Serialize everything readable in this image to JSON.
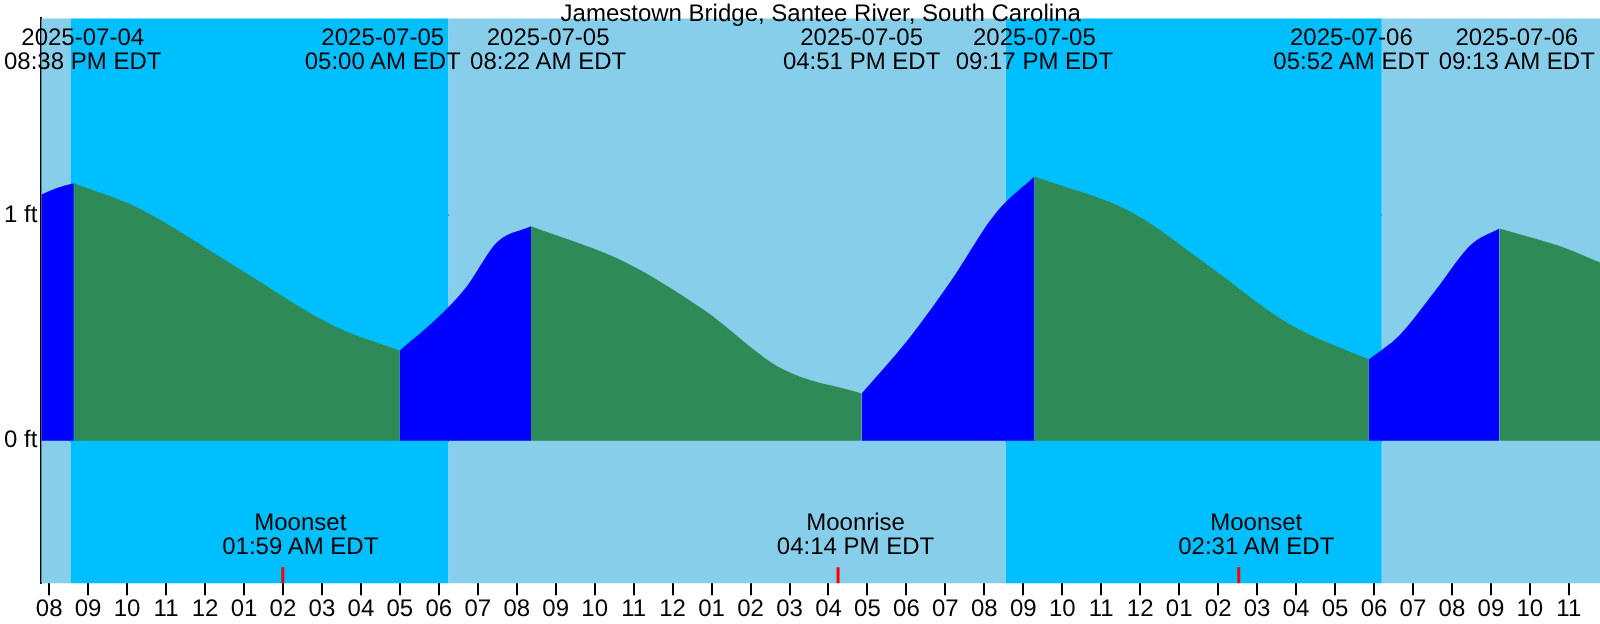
{
  "chart_data": {
    "type": "area",
    "title": "Jamestown Bridge, Santee River, South Carolina",
    "series": [
      {
        "color": "#2e8b57",
        "x": [
          "2025-07-04T20:38",
          "2025-07-04T22:18",
          "2025-07-05T00:48",
          "2025-07-05T03:18",
          "2025-07-05T05:00"
        ],
        "values": [
          1.14,
          1.03,
          0.77,
          0.51,
          0.4
        ]
      },
      {
        "color": "#0000ff",
        "x": [
          "2025-07-05T05:00",
          "2025-07-05T06:00",
          "2025-07-05T06:42",
          "2025-07-05T07:30",
          "2025-07-05T08:22"
        ],
        "values": [
          0.4,
          0.55,
          0.68,
          0.88,
          0.95
        ]
      },
      {
        "color": "#2e8b57",
        "x": [
          "2025-07-05T08:22",
          "2025-07-05T10:48",
          "2025-07-05T12:48",
          "2025-07-05T14:48",
          "2025-07-05T16:51"
        ],
        "values": [
          0.95,
          0.79,
          0.58,
          0.32,
          0.21
        ]
      },
      {
        "color": "#0000ff",
        "x": [
          "2025-07-05T16:51",
          "2025-07-05T18:03",
          "2025-07-05T19:09",
          "2025-07-05T20:18",
          "2025-07-05T21:17"
        ],
        "values": [
          0.21,
          0.45,
          0.71,
          1.01,
          1.17
        ]
      },
      {
        "color": "#2e8b57",
        "x": [
          "2025-07-05T21:17",
          "2025-07-05T23:48",
          "2025-07-06T01:48",
          "2025-07-06T03:48",
          "2025-07-06T05:52"
        ],
        "values": [
          1.17,
          1.01,
          0.77,
          0.52,
          0.36
        ]
      },
      {
        "color": "#0000ff",
        "x": [
          "2025-07-06T05:52",
          "2025-07-06T06:40",
          "2025-07-06T07:33",
          "2025-07-06T08:30",
          "2025-07-06T09:13"
        ],
        "values": [
          0.36,
          0.47,
          0.66,
          0.87,
          0.94
        ]
      },
      {
        "color": "#2e8b57",
        "x": [
          "2025-07-06T09:13",
          "2025-07-06T10:48",
          "2025-07-06T11:48"
        ],
        "values": [
          0.94,
          0.86,
          0.79
        ]
      },
      {
        "color": "#0000ff",
        "x": [
          "2025-07-04T19:48",
          "2025-07-04T20:13",
          "2025-07-04T20:38"
        ],
        "values": [
          1.09,
          1.12,
          1.14
        ]
      }
    ],
    "xlim": [
      "2025-07-04T19:48",
      "2025-07-06T11:48"
    ],
    "xticks": [
      {
        "value": "2025-07-04T20:00",
        "label": "08"
      },
      {
        "value": "2025-07-04T21:00",
        "label": "09"
      },
      {
        "value": "2025-07-04T22:00",
        "label": "10"
      },
      {
        "value": "2025-07-04T23:00",
        "label": "11"
      },
      {
        "value": "2025-07-05T00:00",
        "label": "12"
      },
      {
        "value": "2025-07-05T01:00",
        "label": "01"
      },
      {
        "value": "2025-07-05T02:00",
        "label": "02"
      },
      {
        "value": "2025-07-05T03:00",
        "label": "03"
      },
      {
        "value": "2025-07-05T04:00",
        "label": "04"
      },
      {
        "value": "2025-07-05T05:00",
        "label": "05"
      },
      {
        "value": "2025-07-05T06:00",
        "label": "06"
      },
      {
        "value": "2025-07-05T07:00",
        "label": "07"
      },
      {
        "value": "2025-07-05T08:00",
        "label": "08"
      },
      {
        "value": "2025-07-05T09:00",
        "label": "09"
      },
      {
        "value": "2025-07-05T10:00",
        "label": "10"
      },
      {
        "value": "2025-07-05T11:00",
        "label": "11"
      },
      {
        "value": "2025-07-05T12:00",
        "label": "12"
      },
      {
        "value": "2025-07-05T13:00",
        "label": "01"
      },
      {
        "value": "2025-07-05T14:00",
        "label": "02"
      },
      {
        "value": "2025-07-05T15:00",
        "label": "03"
      },
      {
        "value": "2025-07-05T16:00",
        "label": "04"
      },
      {
        "value": "2025-07-05T17:00",
        "label": "05"
      },
      {
        "value": "2025-07-05T18:00",
        "label": "06"
      },
      {
        "value": "2025-07-05T19:00",
        "label": "07"
      },
      {
        "value": "2025-07-05T20:00",
        "label": "08"
      },
      {
        "value": "2025-07-05T21:00",
        "label": "09"
      },
      {
        "value": "2025-07-05T22:00",
        "label": "10"
      },
      {
        "value": "2025-07-05T23:00",
        "label": "11"
      },
      {
        "value": "2025-07-06T00:00",
        "label": "12"
      },
      {
        "value": "2025-07-06T01:00",
        "label": "01"
      },
      {
        "value": "2025-07-06T02:00",
        "label": "02"
      },
      {
        "value": "2025-07-06T03:00",
        "label": "03"
      },
      {
        "value": "2025-07-06T04:00",
        "label": "04"
      },
      {
        "value": "2025-07-06T05:00",
        "label": "05"
      },
      {
        "value": "2025-07-06T06:00",
        "label": "06"
      },
      {
        "value": "2025-07-06T07:00",
        "label": "07"
      },
      {
        "value": "2025-07-06T08:00",
        "label": "08"
      },
      {
        "value": "2025-07-06T09:00",
        "label": "09"
      },
      {
        "value": "2025-07-06T10:00",
        "label": "10"
      },
      {
        "value": "2025-07-06T11:00",
        "label": "11"
      }
    ],
    "ylim": [
      -0.63,
      1.87
    ],
    "yticks": [
      {
        "value": 0,
        "label": "0 ft"
      },
      {
        "value": 1,
        "label": "1 ft"
      }
    ],
    "grid": "y",
    "legend": false,
    "bands": [
      {
        "axis": "x",
        "from": "2025-07-04T19:48",
        "to": "2025-07-04T20:33",
        "label": null,
        "color": "#87ceeb"
      },
      {
        "axis": "x",
        "from": "2025-07-04T20:33",
        "to": "2025-07-05T06:15",
        "label": null,
        "color": "#00bfff"
      },
      {
        "axis": "x",
        "from": "2025-07-05T06:15",
        "to": "2025-07-05T20:33",
        "label": null,
        "color": "#87ceeb"
      },
      {
        "axis": "x",
        "from": "2025-07-05T20:33",
        "to": "2025-07-06T06:12",
        "label": null,
        "color": "#00bfff"
      },
      {
        "axis": "x",
        "from": "2025-07-06T06:12",
        "to": "2025-07-06T11:48",
        "label": null,
        "color": "#87ceeb"
      }
    ],
    "ref_lines": [
      {
        "axis": "x",
        "value": "2025-07-05T01:59",
        "label": "Moonset\n01:59 AM EDT",
        "color": "#ff0000"
      },
      {
        "axis": "x",
        "value": "2025-07-05T16:14",
        "label": "Moonrise\n04:14 PM EDT",
        "color": "#ff0000"
      },
      {
        "axis": "x",
        "value": "2025-07-06T02:31",
        "label": "Moonset\n02:31 AM EDT",
        "color": "#ff0000"
      }
    ],
    "annotations": [
      "2025-07-04\n08:38 PM EDT",
      "2025-07-05\n05:00 AM EDT",
      "2025-07-05\n08:22 AM EDT",
      "2025-07-05\n04:51 PM EDT",
      "2025-07-05\n09:17 PM EDT",
      "2025-07-06\n05:52 AM EDT",
      "2025-07-06\n09:13 AM EDT"
    ]
  }
}
